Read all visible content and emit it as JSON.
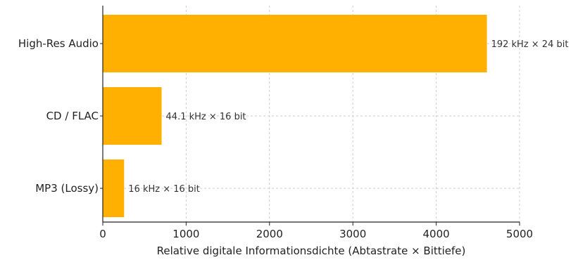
{
  "chart_data": {
    "type": "bar",
    "orientation": "horizontal",
    "title": "",
    "categories": [
      "High-Res Audio",
      "CD / FLAC",
      "MP3 (Lossy)"
    ],
    "values": [
      4608,
      705.6,
      256
    ],
    "data_labels": [
      "192 kHz × 24 bit",
      "44.1 kHz × 16 bit",
      "16 kHz × 16 bit"
    ],
    "xlabel": "Relative digitale Informationsdichte (Abtastrate × Bittiefe)",
    "ylabel": "",
    "xlim": [
      0,
      5000
    ],
    "xticks": [
      0,
      1000,
      2000,
      3000,
      4000,
      5000
    ],
    "grid": true,
    "legend": "none",
    "bar_color": "#ffb000",
    "grid_color": "#cccccc"
  }
}
